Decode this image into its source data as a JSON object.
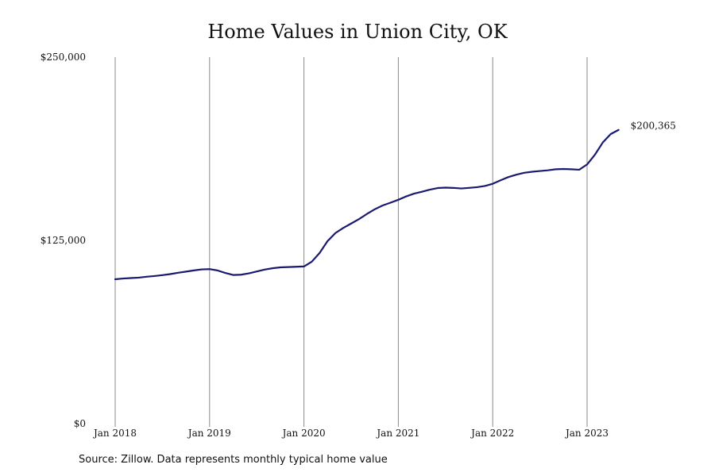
{
  "chart_data": {
    "type": "line",
    "title": "Home Values in Union City, OK",
    "xlabel": "",
    "ylabel": "",
    "ylim": [
      0,
      250000
    ],
    "y_ticks": [
      {
        "value": 0,
        "label": "$0"
      },
      {
        "value": 125000,
        "label": "$125,000"
      },
      {
        "value": 250000,
        "label": "$250,000"
      }
    ],
    "x_ticks": [
      {
        "month": 0,
        "label": "Jan 2018"
      },
      {
        "month": 12,
        "label": "Jan 2019"
      },
      {
        "month": 24,
        "label": "Jan 2020"
      },
      {
        "month": 36,
        "label": "Jan 2021"
      },
      {
        "month": 48,
        "label": "Jan 2022"
      },
      {
        "month": 60,
        "label": "Jan 2023"
      }
    ],
    "grid": "vertical",
    "line_color": "#1a1a6e",
    "dates": [
      "2018-01",
      "2018-02",
      "2018-03",
      "2018-04",
      "2018-05",
      "2018-06",
      "2018-07",
      "2018-08",
      "2018-09",
      "2018-10",
      "2018-11",
      "2018-12",
      "2019-01",
      "2019-02",
      "2019-03",
      "2019-04",
      "2019-05",
      "2019-06",
      "2019-07",
      "2019-08",
      "2019-09",
      "2019-10",
      "2019-11",
      "2019-12",
      "2020-01",
      "2020-02",
      "2020-03",
      "2020-04",
      "2020-05",
      "2020-06",
      "2020-07",
      "2020-08",
      "2020-09",
      "2020-10",
      "2020-11",
      "2020-12",
      "2021-01",
      "2021-02",
      "2021-03",
      "2021-04",
      "2021-05",
      "2021-06",
      "2021-07",
      "2021-08",
      "2021-09",
      "2021-10",
      "2021-11",
      "2021-12",
      "2022-01",
      "2022-02",
      "2022-03",
      "2022-04",
      "2022-05",
      "2022-06",
      "2022-07",
      "2022-08",
      "2022-09",
      "2022-10",
      "2022-11",
      "2022-12",
      "2023-01",
      "2023-02",
      "2023-03",
      "2023-04",
      "2023-05"
    ],
    "values": [
      98500,
      99000,
      99300,
      99600,
      100200,
      100700,
      101300,
      102000,
      102900,
      103700,
      104500,
      105200,
      105400,
      104500,
      102800,
      101400,
      101600,
      102500,
      103800,
      105100,
      106000,
      106600,
      106800,
      107000,
      107200,
      110500,
      116500,
      124500,
      130000,
      133500,
      136500,
      139500,
      143000,
      146200,
      148800,
      150700,
      152700,
      155000,
      156900,
      158200,
      159600,
      160700,
      161000,
      160800,
      160400,
      160800,
      161300,
      162100,
      163600,
      166000,
      168200,
      169800,
      171100,
      171800,
      172300,
      172800,
      173500,
      173700,
      173500,
      173200,
      176800,
      183500,
      191800,
      197500,
      200365
    ],
    "end_label": "$200,365"
  },
  "footer": {
    "source": "Source: Zillow. Data represents monthly typical home value"
  }
}
